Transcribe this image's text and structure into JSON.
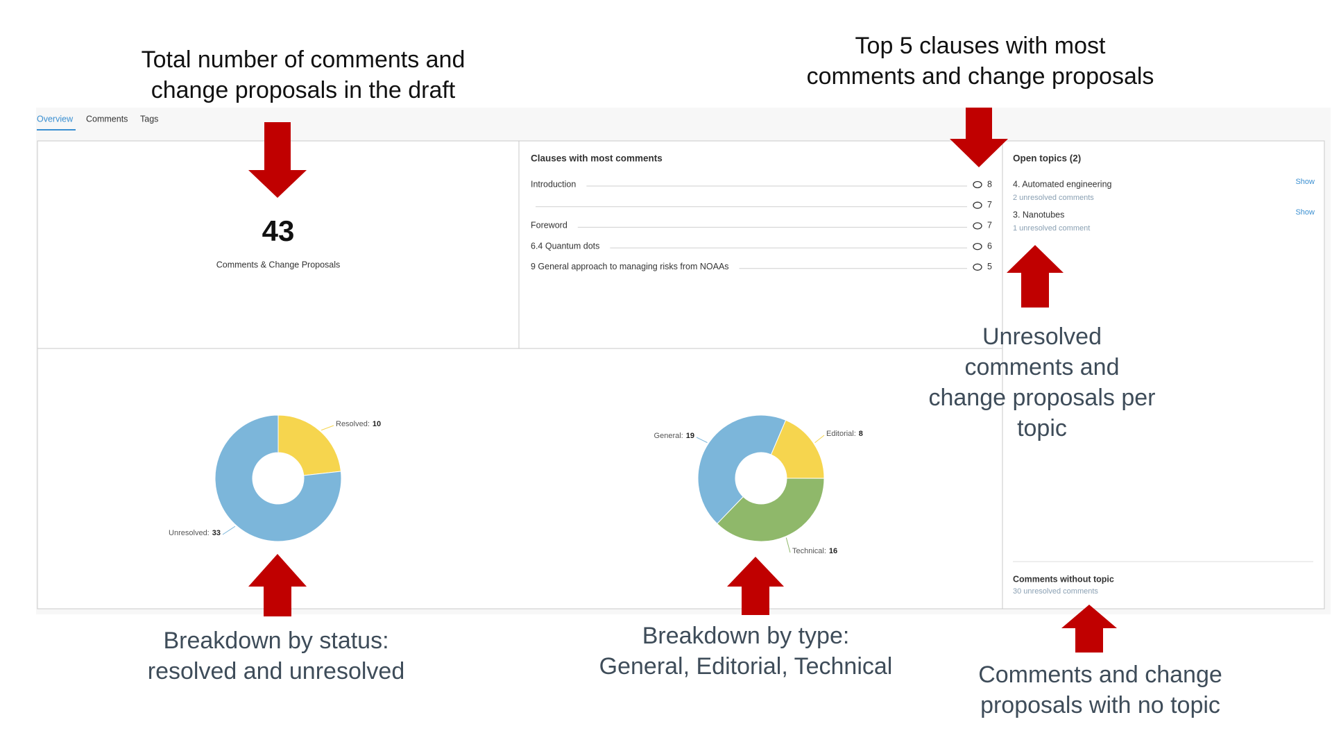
{
  "annotations": {
    "total": [
      "Total number of comments and",
      "change proposals in the draft"
    ],
    "top5": [
      "Top 5 clauses with most",
      "comments and change proposals"
    ],
    "per_topic": [
      "Unresolved",
      "comments and",
      "change proposals per",
      "topic"
    ],
    "status": [
      "Breakdown by status:",
      "resolved and unresolved"
    ],
    "type": [
      "Breakdown by type:",
      "General, Editorial, Technical"
    ],
    "no_topic": [
      "Comments and change",
      "proposals with no topic"
    ]
  },
  "tabs": [
    "Overview",
    "Comments",
    "Tags"
  ],
  "total": {
    "value": 43,
    "label": "Comments & Change Proposals"
  },
  "clauses": {
    "title": "Clauses with most comments",
    "rows": [
      {
        "label": "Introduction",
        "count": 8
      },
      {
        "label": null,
        "count": 7
      },
      {
        "label": "Foreword",
        "count": 7
      },
      {
        "label": "6.4 Quantum dots",
        "count": 6
      },
      {
        "label": "9 General approach to managing risks from NOAAs",
        "count": 5
      }
    ]
  },
  "topics": {
    "title": "Open topics (2)",
    "items": [
      {
        "name": "4. Automated engineering",
        "sub": "2 unresolved comments",
        "action": "Show"
      },
      {
        "name": "3. Nanotubes",
        "sub": "1 unresolved comment",
        "action": "Show"
      }
    ],
    "without": {
      "title": "Comments without topic",
      "sub": "30 unresolved comments"
    }
  },
  "chart_data": [
    {
      "type": "donut",
      "categories": [
        "Resolved:",
        "Unresolved:"
      ],
      "values": [
        10,
        33
      ],
      "colors": [
        "#f6d54e",
        "#7cb6da"
      ]
    },
    {
      "type": "donut",
      "categories": [
        "General:",
        "Editorial:",
        "Technical:"
      ],
      "values": [
        19,
        8,
        16
      ],
      "colors": [
        "#7cb6da",
        "#f6d54e",
        "#8fb86a"
      ]
    }
  ]
}
